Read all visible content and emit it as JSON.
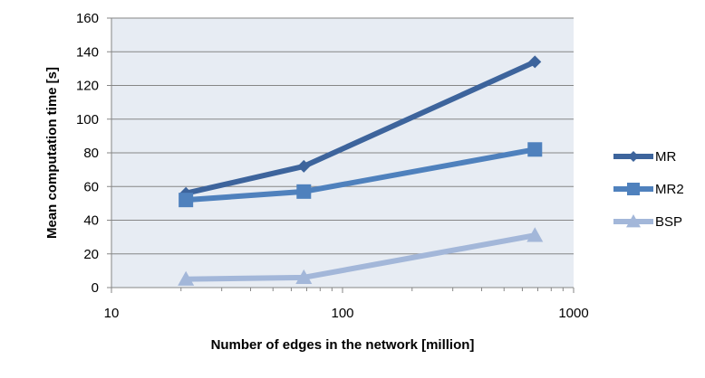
{
  "chart_data": {
    "type": "line",
    "xscale": "log",
    "xlabel": "Number of edges in the network [million]",
    "ylabel": "Mean computation  time [s]",
    "xlim": [
      10,
      1000
    ],
    "ylim": [
      0,
      160
    ],
    "x_ticks": [
      10,
      100,
      1000
    ],
    "y_ticks": [
      0,
      20,
      40,
      60,
      80,
      100,
      120,
      140,
      160
    ],
    "grid": "horizontal",
    "legend_position": "right",
    "background": "#e7ecf3",
    "series": [
      {
        "name": "MR",
        "marker": "diamond",
        "color": "#3d649c",
        "points": [
          {
            "x": 21,
            "y": 56
          },
          {
            "x": 68,
            "y": 72
          },
          {
            "x": 680,
            "y": 134
          }
        ]
      },
      {
        "name": "MR2",
        "marker": "square",
        "color": "#4f81bd",
        "points": [
          {
            "x": 21,
            "y": 52
          },
          {
            "x": 68,
            "y": 57
          },
          {
            "x": 680,
            "y": 82
          }
        ]
      },
      {
        "name": "BSP",
        "marker": "triangle",
        "color": "#a3b7d9",
        "points": [
          {
            "x": 21,
            "y": 5
          },
          {
            "x": 68,
            "y": 6
          },
          {
            "x": 680,
            "y": 31
          }
        ]
      }
    ]
  }
}
